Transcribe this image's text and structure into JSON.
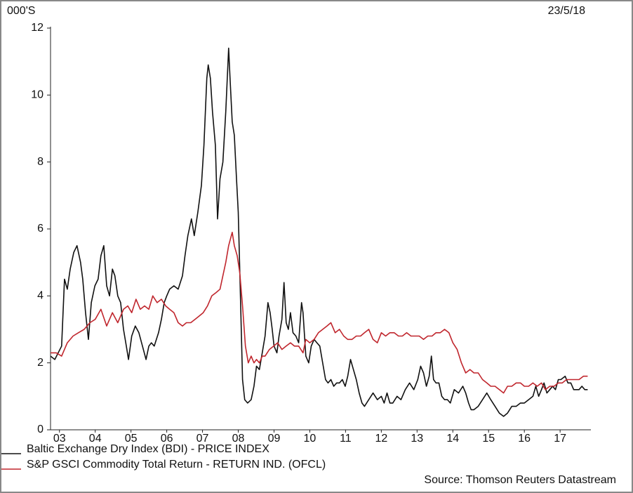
{
  "chart_data": {
    "type": "line",
    "unit_label": "000'S",
    "date_label": "23/5/18",
    "source": "Source: Thomson Reuters Datastream",
    "xlim": [
      2003.25,
      2018.4
    ],
    "ylim": [
      0,
      12
    ],
    "yticks": [
      0,
      2,
      4,
      6,
      8,
      10,
      12
    ],
    "xticks": [
      {
        "value": 2003.5,
        "label": "03"
      },
      {
        "value": 2004.5,
        "label": "04"
      },
      {
        "value": 2005.5,
        "label": "05"
      },
      {
        "value": 2006.5,
        "label": "06"
      },
      {
        "value": 2007.5,
        "label": "07"
      },
      {
        "value": 2008.5,
        "label": "08"
      },
      {
        "value": 2009.5,
        "label": "09"
      },
      {
        "value": 2010.5,
        "label": "10"
      },
      {
        "value": 2011.5,
        "label": "11"
      },
      {
        "value": 2012.5,
        "label": "12"
      },
      {
        "value": 2013.5,
        "label": "13"
      },
      {
        "value": 2014.5,
        "label": "14"
      },
      {
        "value": 2015.5,
        "label": "15"
      },
      {
        "value": 2016.5,
        "label": "16"
      },
      {
        "value": 2017.5,
        "label": "17"
      }
    ],
    "series": [
      {
        "name": "Baltic Exchange Dry Index (BDI) - PRICE INDEX",
        "color": "#111111",
        "x": [
          2003.25,
          2003.37,
          2003.56,
          2003.64,
          2003.72,
          2003.8,
          2003.9,
          2003.99,
          2004.09,
          2004.15,
          2004.23,
          2004.31,
          2004.39,
          2004.49,
          2004.58,
          2004.66,
          2004.74,
          2004.82,
          2004.9,
          2004.98,
          2005.05,
          2005.13,
          2005.21,
          2005.29,
          2005.37,
          2005.43,
          2005.52,
          2005.62,
          2005.72,
          2005.82,
          2005.92,
          2006.0,
          2006.07,
          2006.15,
          2006.27,
          2006.35,
          2006.43,
          2006.5,
          2006.58,
          2006.7,
          2006.82,
          2006.94,
          2007.01,
          2007.09,
          2007.19,
          2007.27,
          2007.37,
          2007.47,
          2007.54,
          2007.62,
          2007.66,
          2007.72,
          2007.78,
          2007.86,
          2007.92,
          2007.99,
          2008.07,
          2008.15,
          2008.23,
          2008.27,
          2008.33,
          2008.39,
          2008.45,
          2008.5,
          2008.56,
          2008.62,
          2008.68,
          2008.76,
          2008.86,
          2008.94,
          2009.01,
          2009.09,
          2009.17,
          2009.25,
          2009.33,
          2009.39,
          2009.45,
          2009.5,
          2009.58,
          2009.64,
          2009.72,
          2009.78,
          2009.84,
          2009.9,
          2009.96,
          2010.03,
          2010.11,
          2010.19,
          2010.27,
          2010.31,
          2010.39,
          2010.47,
          2010.54,
          2010.62,
          2010.7,
          2010.78,
          2010.86,
          2010.94,
          2011.01,
          2011.09,
          2011.17,
          2011.25,
          2011.33,
          2011.41,
          2011.49,
          2011.56,
          2011.64,
          2011.72,
          2011.8,
          2011.88,
          2011.96,
          2012.03,
          2012.15,
          2012.27,
          2012.39,
          2012.5,
          2012.58,
          2012.66,
          2012.74,
          2012.82,
          2012.94,
          2013.05,
          2013.17,
          2013.29,
          2013.41,
          2013.52,
          2013.6,
          2013.68,
          2013.76,
          2013.84,
          2013.9,
          2013.96,
          2014.03,
          2014.11,
          2014.19,
          2014.27,
          2014.35,
          2014.43,
          2014.54,
          2014.66,
          2014.78,
          2014.86,
          2014.94,
          2015.01,
          2015.09,
          2015.21,
          2015.33,
          2015.45,
          2015.56,
          2015.68,
          2015.8,
          2015.92,
          2016.03,
          2016.15,
          2016.27,
          2016.39,
          2016.5,
          2016.62,
          2016.74,
          2016.82,
          2016.9,
          2016.98,
          2017.05,
          2017.13,
          2017.21,
          2017.29,
          2017.37,
          2017.45,
          2017.52,
          2017.64,
          2017.72,
          2017.8,
          2017.88,
          2017.96,
          2018.03,
          2018.11,
          2018.19,
          2018.27
        ],
        "values": [
          2.2,
          2.1,
          2.5,
          4.5,
          4.2,
          4.8,
          5.3,
          5.5,
          5.0,
          4.5,
          3.5,
          2.7,
          3.8,
          4.3,
          4.5,
          5.2,
          5.5,
          4.3,
          4.0,
          4.8,
          4.6,
          4.0,
          3.8,
          3.0,
          2.5,
          2.1,
          2.8,
          3.1,
          2.9,
          2.5,
          2.1,
          2.5,
          2.6,
          2.5,
          2.9,
          3.3,
          3.8,
          4.0,
          4.2,
          4.3,
          4.2,
          4.6,
          5.2,
          5.8,
          6.3,
          5.8,
          6.5,
          7.3,
          8.5,
          10.5,
          10.9,
          10.5,
          9.5,
          8.5,
          6.3,
          7.5,
          8.0,
          9.5,
          11.4,
          10.5,
          9.2,
          8.8,
          7.5,
          6.5,
          4.0,
          1.5,
          0.9,
          0.8,
          0.9,
          1.3,
          1.9,
          1.8,
          2.3,
          2.8,
          3.8,
          3.5,
          3.0,
          2.5,
          2.3,
          2.8,
          3.3,
          4.4,
          3.2,
          3.0,
          3.5,
          2.9,
          2.8,
          2.6,
          3.8,
          3.5,
          2.2,
          2.0,
          2.5,
          2.7,
          2.6,
          2.5,
          2.0,
          1.5,
          1.4,
          1.5,
          1.3,
          1.4,
          1.4,
          1.5,
          1.3,
          1.6,
          2.1,
          1.8,
          1.5,
          1.1,
          0.8,
          0.7,
          0.9,
          1.1,
          0.9,
          1.0,
          0.8,
          1.1,
          0.8,
          0.8,
          1.0,
          0.9,
          1.2,
          1.4,
          1.2,
          1.5,
          1.9,
          1.7,
          1.3,
          1.6,
          2.2,
          1.5,
          1.4,
          1.4,
          1.0,
          0.9,
          0.9,
          0.8,
          1.2,
          1.1,
          1.3,
          1.1,
          0.8,
          0.6,
          0.6,
          0.7,
          0.9,
          1.1,
          0.9,
          0.7,
          0.5,
          0.4,
          0.5,
          0.7,
          0.7,
          0.8,
          0.8,
          0.9,
          1.0,
          1.3,
          1.0,
          1.2,
          1.4,
          1.1,
          1.2,
          1.3,
          1.2,
          1.5,
          1.5,
          1.6,
          1.4,
          1.4,
          1.2,
          1.2,
          1.2,
          1.3,
          1.2,
          1.2
        ]
      },
      {
        "name": "S&P GSCI Commodity Total Return - RETURN IND. (OFCL)",
        "color": "#c0262d",
        "x": [
          2003.25,
          2003.41,
          2003.56,
          2003.72,
          2003.88,
          2004.03,
          2004.19,
          2004.35,
          2004.5,
          2004.66,
          2004.82,
          2004.98,
          2005.13,
          2005.21,
          2005.29,
          2005.41,
          2005.52,
          2005.64,
          2005.76,
          2005.88,
          2006.0,
          2006.11,
          2006.23,
          2006.35,
          2006.47,
          2006.58,
          2006.7,
          2006.82,
          2006.94,
          2007.05,
          2007.17,
          2007.29,
          2007.41,
          2007.52,
          2007.64,
          2007.76,
          2007.88,
          2007.99,
          2008.07,
          2008.15,
          2008.23,
          2008.33,
          2008.39,
          2008.47,
          2008.54,
          2008.62,
          2008.7,
          2008.78,
          2008.86,
          2008.94,
          2009.01,
          2009.09,
          2009.17,
          2009.25,
          2009.37,
          2009.49,
          2009.6,
          2009.72,
          2009.84,
          2009.96,
          2010.07,
          2010.19,
          2010.31,
          2010.39,
          2010.5,
          2010.62,
          2010.74,
          2010.86,
          2010.98,
          2011.09,
          2011.21,
          2011.33,
          2011.45,
          2011.56,
          2011.68,
          2011.8,
          2011.92,
          2012.03,
          2012.15,
          2012.27,
          2012.39,
          2012.5,
          2012.62,
          2012.74,
          2012.86,
          2012.98,
          2013.09,
          2013.21,
          2013.33,
          2013.45,
          2013.56,
          2013.68,
          2013.8,
          2013.92,
          2014.03,
          2014.15,
          2014.27,
          2014.39,
          2014.5,
          2014.62,
          2014.74,
          2014.86,
          2014.98,
          2015.09,
          2015.21,
          2015.33,
          2015.45,
          2015.56,
          2015.68,
          2015.8,
          2015.92,
          2016.03,
          2016.15,
          2016.27,
          2016.39,
          2016.5,
          2016.62,
          2016.74,
          2016.86,
          2016.98,
          2017.09,
          2017.21,
          2017.33,
          2017.45,
          2017.56,
          2017.68,
          2017.8,
          2017.92,
          2018.03,
          2018.15,
          2018.27
        ],
        "values": [
          2.3,
          2.3,
          2.2,
          2.6,
          2.8,
          2.9,
          3.0,
          3.2,
          3.3,
          3.6,
          3.1,
          3.5,
          3.2,
          3.4,
          3.6,
          3.7,
          3.5,
          3.9,
          3.6,
          3.7,
          3.6,
          4.0,
          3.8,
          3.9,
          3.7,
          3.6,
          3.5,
          3.2,
          3.1,
          3.2,
          3.2,
          3.3,
          3.4,
          3.5,
          3.7,
          4.0,
          4.1,
          4.2,
          4.6,
          5.0,
          5.5,
          5.9,
          5.5,
          5.2,
          4.7,
          3.7,
          2.5,
          2.0,
          2.2,
          2.0,
          2.1,
          2.0,
          2.2,
          2.2,
          2.4,
          2.5,
          2.6,
          2.4,
          2.5,
          2.6,
          2.5,
          2.5,
          2.3,
          2.7,
          2.6,
          2.7,
          2.9,
          3.0,
          3.1,
          3.2,
          2.9,
          3.0,
          2.8,
          2.7,
          2.7,
          2.8,
          2.8,
          2.9,
          3.0,
          2.7,
          2.6,
          2.9,
          2.8,
          2.9,
          2.9,
          2.8,
          2.8,
          2.9,
          2.8,
          2.8,
          2.8,
          2.7,
          2.8,
          2.8,
          2.9,
          2.9,
          3.0,
          2.9,
          2.6,
          2.4,
          2.0,
          1.7,
          1.8,
          1.7,
          1.7,
          1.5,
          1.4,
          1.3,
          1.3,
          1.2,
          1.1,
          1.3,
          1.3,
          1.4,
          1.4,
          1.3,
          1.3,
          1.4,
          1.3,
          1.4,
          1.2,
          1.3,
          1.3,
          1.4,
          1.4,
          1.5,
          1.5,
          1.5,
          1.5,
          1.6,
          1.6
        ]
      }
    ]
  }
}
